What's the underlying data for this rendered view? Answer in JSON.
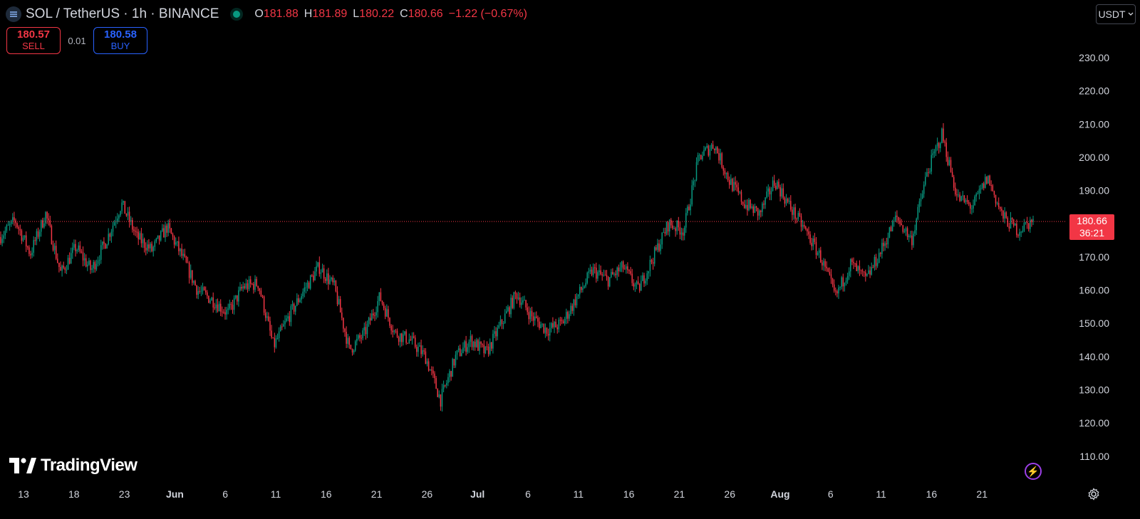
{
  "header": {
    "symbol": "SOL / TetherUS · 1h · BINANCE",
    "ohlc": {
      "o_label": "O",
      "o_value": "181.88",
      "h_label": "H",
      "h_value": "181.89",
      "l_label": "L",
      "l_value": "180.22",
      "c_label": "C",
      "c_value": "180.66",
      "change": "−1.22 (−0.67%)"
    }
  },
  "trade": {
    "sell_price": "180.57",
    "sell_label": "SELL",
    "spread": "0.01",
    "buy_price": "180.58",
    "buy_label": "BUY"
  },
  "currency": "USDT",
  "price_tag": {
    "price": "180.66",
    "countdown": "36:21"
  },
  "branding": "TradingView",
  "colors": {
    "up": "#089981",
    "down": "#f23645",
    "background": "#000000",
    "axis_text": "#d1d4dc",
    "accent": "#2962ff"
  },
  "icons": [
    "chart-symbol-icon",
    "market-status-dot-icon",
    "chevron-down-icon",
    "lightning-icon",
    "gear-icon",
    "tradingview-logo-icon"
  ],
  "chart_data": {
    "type": "candlestick",
    "timeframe": "1h",
    "y_ticks": [
      "230.00",
      "220.00",
      "210.00",
      "200.00",
      "190.00",
      "180.00",
      "170.00",
      "160.00",
      "150.00",
      "140.00",
      "130.00",
      "120.00",
      "110.00"
    ],
    "x_ticks": [
      "13",
      "18",
      "23",
      "Jun",
      "6",
      "11",
      "16",
      "21",
      "26",
      "Jul",
      "6",
      "11",
      "16",
      "21",
      "26",
      "Aug",
      "6",
      "11",
      "16",
      "21"
    ],
    "ylim": [
      104,
      238
    ],
    "last_price": 180.66,
    "grid": false,
    "close_path": [
      [
        "13",
        176
      ],
      [
        "15",
        181
      ],
      [
        "16",
        171
      ],
      [
        "17",
        183
      ],
      [
        "18",
        165
      ],
      [
        "20",
        173
      ],
      [
        "21",
        166
      ],
      [
        "22",
        175
      ],
      [
        "23",
        186
      ],
      [
        "24",
        176
      ],
      [
        "25",
        172
      ],
      [
        "27",
        179
      ],
      [
        "29",
        170
      ],
      [
        "30",
        160
      ],
      [
        "31",
        157
      ],
      [
        "Jun",
        153
      ],
      [
        "3",
        161
      ],
      [
        "5",
        162
      ],
      [
        "6",
        143
      ],
      [
        "8",
        152
      ],
      [
        "10",
        160
      ],
      [
        "11",
        167
      ],
      [
        "12",
        161
      ],
      [
        "13",
        142
      ],
      [
        "14",
        147
      ],
      [
        "16",
        158
      ],
      [
        "18",
        147
      ],
      [
        "20",
        145
      ],
      [
        "21",
        140
      ],
      [
        "23",
        127
      ],
      [
        "24",
        140
      ],
      [
        "26",
        145
      ],
      [
        "28",
        141
      ],
      [
        "Jul",
        150
      ],
      [
        "3",
        159
      ],
      [
        "5",
        152
      ],
      [
        "7",
        148
      ],
      [
        "9",
        150
      ],
      [
        "11",
        158
      ],
      [
        "12",
        166
      ],
      [
        "14",
        163
      ],
      [
        "15",
        167
      ],
      [
        "16",
        160
      ],
      [
        "17",
        170
      ],
      [
        "19",
        180
      ],
      [
        "20",
        178
      ],
      [
        "22",
        200
      ],
      [
        "23",
        204
      ],
      [
        "24",
        193
      ],
      [
        "25",
        186
      ],
      [
        "26",
        183
      ],
      [
        "28",
        193
      ],
      [
        "29",
        185
      ],
      [
        "31",
        178
      ],
      [
        "Aug",
        170
      ],
      [
        "3",
        158
      ],
      [
        "5",
        168
      ],
      [
        "7",
        163
      ],
      [
        "9",
        172
      ],
      [
        "11",
        182
      ],
      [
        "12",
        175
      ],
      [
        "13",
        195
      ],
      [
        "14",
        207
      ],
      [
        "15",
        188
      ],
      [
        "16",
        185
      ],
      [
        "18",
        194
      ],
      [
        "19",
        182
      ],
      [
        "20",
        178
      ],
      [
        "21",
        181
      ]
    ],
    "y_values": {
      "start_close": 176,
      "high": 209.5,
      "low": 126,
      "last_close": 180.66
    }
  }
}
